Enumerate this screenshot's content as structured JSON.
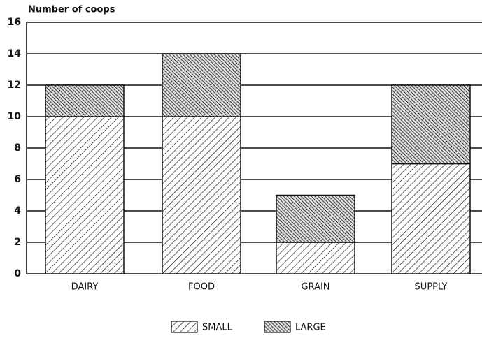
{
  "chart_data": {
    "type": "stacked_bar",
    "title": "Number of coops",
    "categories": [
      "DAIRY",
      "FOOD",
      "GRAIN",
      "SUPPLY"
    ],
    "series": [
      {
        "name": "SMALL",
        "color": "#111111",
        "values": [
          10,
          10,
          2,
          7
        ]
      },
      {
        "name": "LARGE",
        "color": "#111111",
        "values": [
          2,
          4,
          3,
          5
        ]
      }
    ],
    "ylim": [
      0,
      16
    ],
    "yticks": [
      0,
      2,
      4,
      6,
      8,
      10,
      12,
      14,
      16
    ],
    "grid": true
  }
}
